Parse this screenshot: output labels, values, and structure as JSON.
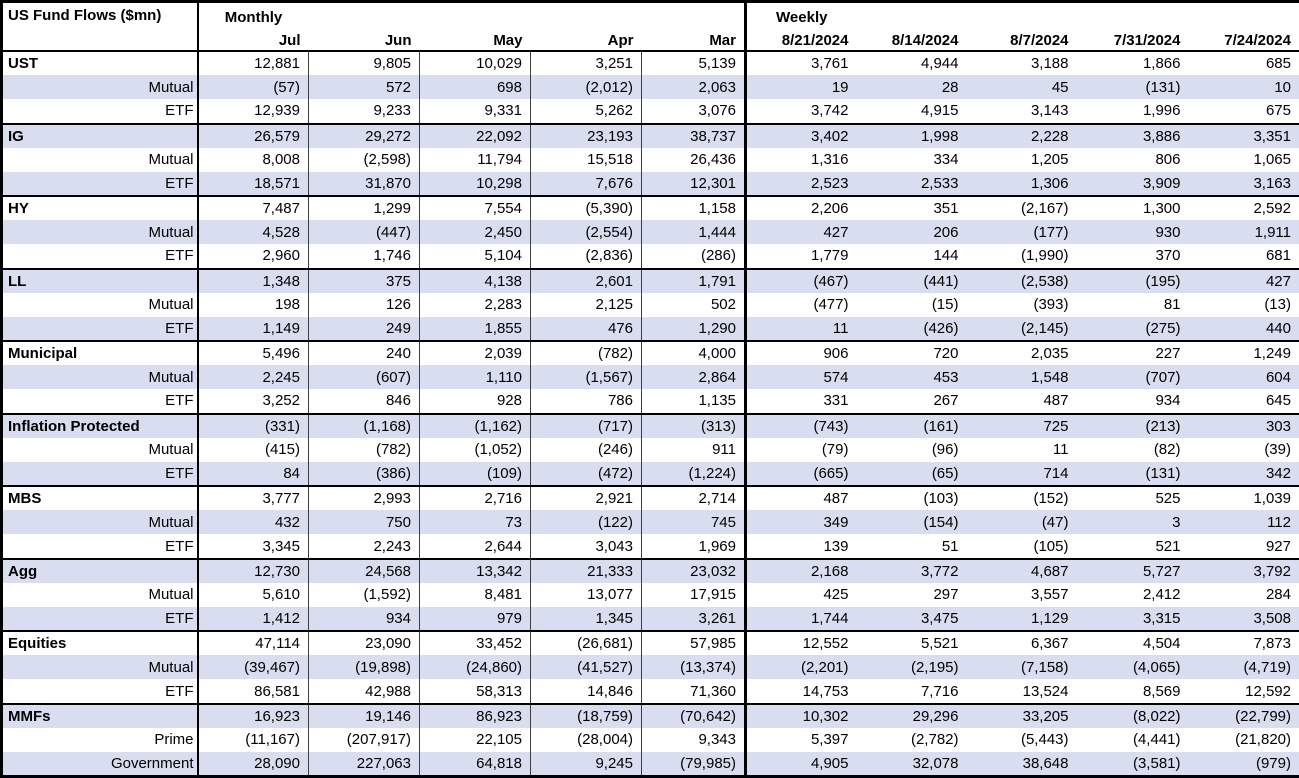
{
  "colors": {
    "band": "#D8DEF0",
    "border": "#000000",
    "background": "#FFFFFF",
    "text": "#000000"
  },
  "chart_data": {
    "type": "table",
    "title": "US Fund Flows ($mn)",
    "column_groups": [
      {
        "label": "Monthly",
        "columns": [
          "Jul",
          "Jun",
          "May",
          "Apr",
          "Mar"
        ]
      },
      {
        "label": "Weekly",
        "columns": [
          "8/21/2024",
          "8/14/2024",
          "8/7/2024",
          "7/31/2024",
          "7/24/2024"
        ]
      }
    ],
    "rows": [
      {
        "label": "UST",
        "level": "group",
        "monthly": [
          "12,881",
          "9,805",
          "10,029",
          "3,251",
          "5,139"
        ],
        "weekly": [
          "3,761",
          "4,944",
          "3,188",
          "1,866",
          "685"
        ]
      },
      {
        "label": "Mutual",
        "level": "sub",
        "monthly": [
          "(57)",
          "572",
          "698",
          "(2,012)",
          "2,063"
        ],
        "weekly": [
          "19",
          "28",
          "45",
          "(131)",
          "10"
        ]
      },
      {
        "label": "ETF",
        "level": "sub",
        "monthly": [
          "12,939",
          "9,233",
          "9,331",
          "5,262",
          "3,076"
        ],
        "weekly": [
          "3,742",
          "4,915",
          "3,143",
          "1,996",
          "675"
        ]
      },
      {
        "label": "IG",
        "level": "group",
        "monthly": [
          "26,579",
          "29,272",
          "22,092",
          "23,193",
          "38,737"
        ],
        "weekly": [
          "3,402",
          "1,998",
          "2,228",
          "3,886",
          "3,351"
        ]
      },
      {
        "label": "Mutual",
        "level": "sub",
        "monthly": [
          "8,008",
          "(2,598)",
          "11,794",
          "15,518",
          "26,436"
        ],
        "weekly": [
          "1,316",
          "334",
          "1,205",
          "806",
          "1,065"
        ]
      },
      {
        "label": "ETF",
        "level": "sub",
        "monthly": [
          "18,571",
          "31,870",
          "10,298",
          "7,676",
          "12,301"
        ],
        "weekly": [
          "2,523",
          "2,533",
          "1,306",
          "3,909",
          "3,163"
        ]
      },
      {
        "label": "HY",
        "level": "group",
        "monthly": [
          "7,487",
          "1,299",
          "7,554",
          "(5,390)",
          "1,158"
        ],
        "weekly": [
          "2,206",
          "351",
          "(2,167)",
          "1,300",
          "2,592"
        ]
      },
      {
        "label": "Mutual",
        "level": "sub",
        "monthly": [
          "4,528",
          "(447)",
          "2,450",
          "(2,554)",
          "1,444"
        ],
        "weekly": [
          "427",
          "206",
          "(177)",
          "930",
          "1,911"
        ]
      },
      {
        "label": "ETF",
        "level": "sub",
        "monthly": [
          "2,960",
          "1,746",
          "5,104",
          "(2,836)",
          "(286)"
        ],
        "weekly": [
          "1,779",
          "144",
          "(1,990)",
          "370",
          "681"
        ]
      },
      {
        "label": "LL",
        "level": "group",
        "monthly": [
          "1,348",
          "375",
          "4,138",
          "2,601",
          "1,791"
        ],
        "weekly": [
          "(467)",
          "(441)",
          "(2,538)",
          "(195)",
          "427"
        ]
      },
      {
        "label": "Mutual",
        "level": "sub",
        "monthly": [
          "198",
          "126",
          "2,283",
          "2,125",
          "502"
        ],
        "weekly": [
          "(477)",
          "(15)",
          "(393)",
          "81",
          "(13)"
        ]
      },
      {
        "label": "ETF",
        "level": "sub",
        "monthly": [
          "1,149",
          "249",
          "1,855",
          "476",
          "1,290"
        ],
        "weekly": [
          "11",
          "(426)",
          "(2,145)",
          "(275)",
          "440"
        ]
      },
      {
        "label": "Municipal",
        "level": "group",
        "monthly": [
          "5,496",
          "240",
          "2,039",
          "(782)",
          "4,000"
        ],
        "weekly": [
          "906",
          "720",
          "2,035",
          "227",
          "1,249"
        ]
      },
      {
        "label": "Mutual",
        "level": "sub",
        "monthly": [
          "2,245",
          "(607)",
          "1,110",
          "(1,567)",
          "2,864"
        ],
        "weekly": [
          "574",
          "453",
          "1,548",
          "(707)",
          "604"
        ]
      },
      {
        "label": "ETF",
        "level": "sub",
        "monthly": [
          "3,252",
          "846",
          "928",
          "786",
          "1,135"
        ],
        "weekly": [
          "331",
          "267",
          "487",
          "934",
          "645"
        ]
      },
      {
        "label": "Inflation Protected",
        "level": "group",
        "monthly": [
          "(331)",
          "(1,168)",
          "(1,162)",
          "(717)",
          "(313)"
        ],
        "weekly": [
          "(743)",
          "(161)",
          "725",
          "(213)",
          "303"
        ]
      },
      {
        "label": "Mutual",
        "level": "sub",
        "monthly": [
          "(415)",
          "(782)",
          "(1,052)",
          "(246)",
          "911"
        ],
        "weekly": [
          "(79)",
          "(96)",
          "11",
          "(82)",
          "(39)"
        ]
      },
      {
        "label": "ETF",
        "level": "sub",
        "monthly": [
          "84",
          "(386)",
          "(109)",
          "(472)",
          "(1,224)"
        ],
        "weekly": [
          "(665)",
          "(65)",
          "714",
          "(131)",
          "342"
        ]
      },
      {
        "label": "MBS",
        "level": "group",
        "monthly": [
          "3,777",
          "2,993",
          "2,716",
          "2,921",
          "2,714"
        ],
        "weekly": [
          "487",
          "(103)",
          "(152)",
          "525",
          "1,039"
        ]
      },
      {
        "label": "Mutual",
        "level": "sub",
        "monthly": [
          "432",
          "750",
          "73",
          "(122)",
          "745"
        ],
        "weekly": [
          "349",
          "(154)",
          "(47)",
          "3",
          "112"
        ]
      },
      {
        "label": "ETF",
        "level": "sub",
        "monthly": [
          "3,345",
          "2,243",
          "2,644",
          "3,043",
          "1,969"
        ],
        "weekly": [
          "139",
          "51",
          "(105)",
          "521",
          "927"
        ]
      },
      {
        "label": "Agg",
        "level": "group",
        "monthly": [
          "12,730",
          "24,568",
          "13,342",
          "21,333",
          "23,032"
        ],
        "weekly": [
          "2,168",
          "3,772",
          "4,687",
          "5,727",
          "3,792"
        ]
      },
      {
        "label": "Mutual",
        "level": "sub",
        "monthly": [
          "5,610",
          "(1,592)",
          "8,481",
          "13,077",
          "17,915"
        ],
        "weekly": [
          "425",
          "297",
          "3,557",
          "2,412",
          "284"
        ]
      },
      {
        "label": "ETF",
        "level": "sub",
        "monthly": [
          "1,412",
          "934",
          "979",
          "1,345",
          "3,261"
        ],
        "weekly": [
          "1,744",
          "3,475",
          "1,129",
          "3,315",
          "3,508"
        ]
      },
      {
        "label": "Equities",
        "level": "group",
        "monthly": [
          "47,114",
          "23,090",
          "33,452",
          "(26,681)",
          "57,985"
        ],
        "weekly": [
          "12,552",
          "5,521",
          "6,367",
          "4,504",
          "7,873"
        ]
      },
      {
        "label": "Mutual",
        "level": "sub",
        "monthly": [
          "(39,467)",
          "(19,898)",
          "(24,860)",
          "(41,527)",
          "(13,374)"
        ],
        "weekly": [
          "(2,201)",
          "(2,195)",
          "(7,158)",
          "(4,065)",
          "(4,719)"
        ]
      },
      {
        "label": "ETF",
        "level": "sub",
        "monthly": [
          "86,581",
          "42,988",
          "58,313",
          "14,846",
          "71,360"
        ],
        "weekly": [
          "14,753",
          "7,716",
          "13,524",
          "8,569",
          "12,592"
        ]
      },
      {
        "label": "MMFs",
        "level": "group",
        "monthly": [
          "16,923",
          "19,146",
          "86,923",
          "(18,759)",
          "(70,642)"
        ],
        "weekly": [
          "10,302",
          "29,296",
          "33,205",
          "(8,022)",
          "(22,799)"
        ]
      },
      {
        "label": "Prime",
        "level": "sub",
        "monthly": [
          "(11,167)",
          "(207,917)",
          "22,105",
          "(28,004)",
          "9,343"
        ],
        "weekly": [
          "5,397",
          "(2,782)",
          "(5,443)",
          "(4,441)",
          "(21,820)"
        ]
      },
      {
        "label": "Government",
        "level": "sub",
        "monthly": [
          "28,090",
          "227,063",
          "64,818",
          "9,245",
          "(79,985)"
        ],
        "weekly": [
          "4,905",
          "32,078",
          "38,648",
          "(3,581)",
          "(979)"
        ]
      }
    ]
  }
}
